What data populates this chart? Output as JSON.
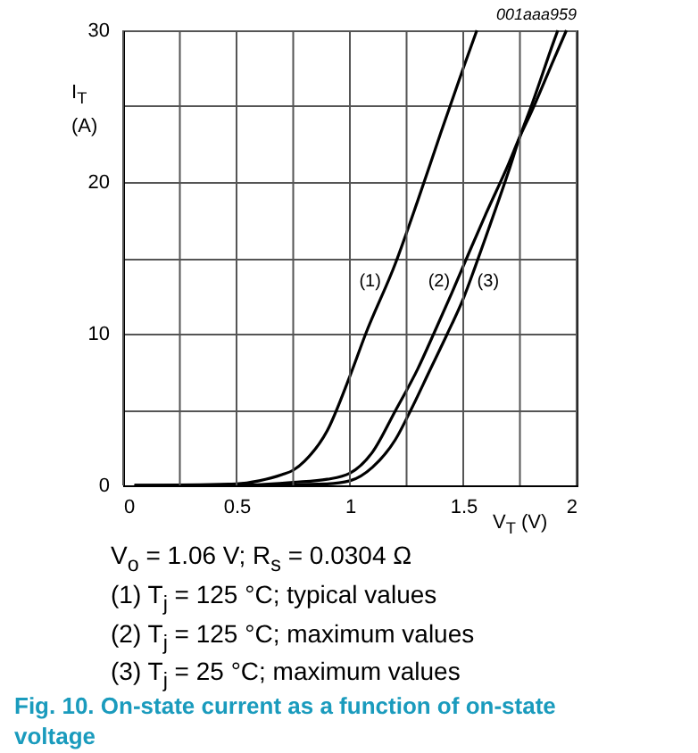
{
  "chart_data": {
    "type": "line",
    "title": "Fig. 10. On-state current as a function of on-state voltage",
    "xlabel": "V$_{T}$ (V)",
    "ylabel": "I$_{T}$ (A)",
    "xlim": [
      0,
      2
    ],
    "ylim": [
      0,
      30
    ],
    "xticks": [
      0,
      {
        "value": 0.25,
        "label": null
      },
      0.5,
      {
        "value": 0.75,
        "label": null
      },
      1,
      {
        "value": 1.25,
        "label": null
      },
      1.5,
      {
        "value": 1.75,
        "label": null
      },
      2
    ],
    "yticks": [
      0,
      {
        "value": 5,
        "label": null
      },
      10,
      {
        "value": 15,
        "label": null
      },
      20,
      {
        "value": 25,
        "label": null
      },
      30
    ],
    "grid": true,
    "legend": false,
    "series": [
      {
        "name": "(1)",
        "color": "#000000",
        "x": [
          0.05,
          0.5,
          0.6,
          0.7,
          0.75,
          0.8,
          0.9,
          1.0,
          1.07,
          1.2,
          1.3,
          1.4,
          1.5,
          1.56
        ],
        "values": [
          0,
          0.1,
          0.3,
          0.7,
          1.0,
          1.6,
          3.6,
          7.2,
          10,
          14.6,
          18.8,
          23.2,
          27.5,
          30
        ]
      },
      {
        "name": "(2)",
        "color": "#000000",
        "x": [
          0.05,
          0.5,
          0.75,
          0.9,
          1.0,
          1.1,
          1.2,
          1.3,
          1.37,
          1.45,
          1.53,
          1.6,
          1.7,
          1.75,
          1.8,
          1.9,
          1.955
        ],
        "values": [
          0,
          0,
          0.2,
          0.4,
          0.8,
          2.2,
          4.9,
          7.7,
          10,
          12.7,
          15.5,
          17.9,
          21.2,
          23,
          24.6,
          28.1,
          30
        ]
      },
      {
        "name": "(3)",
        "color": "#000000",
        "x": [
          0.05,
          0.5,
          0.9,
          1.0,
          1.1,
          1.2,
          1.27,
          1.35,
          1.43,
          1.5,
          1.55,
          1.6,
          1.7,
          1.75,
          1.8,
          1.9,
          1.917
        ],
        "values": [
          0,
          0,
          0.1,
          0.3,
          1.2,
          3.0,
          5,
          7.5,
          10,
          12.3,
          14.3,
          16.4,
          20.7,
          23,
          25.0,
          29.3,
          30
        ]
      }
    ],
    "annotations": [
      "001aaa959",
      "V$_{o}$ = 1.06 V; R$_{s}$ = 0.0304 Ω",
      "(1) T$_{j}$ = 125 °C; typical values",
      "(2) T$_{j}$ = 125 °C; maximum values",
      "(3) T$_{j}$ = 25 °C; maximum values"
    ]
  }
}
